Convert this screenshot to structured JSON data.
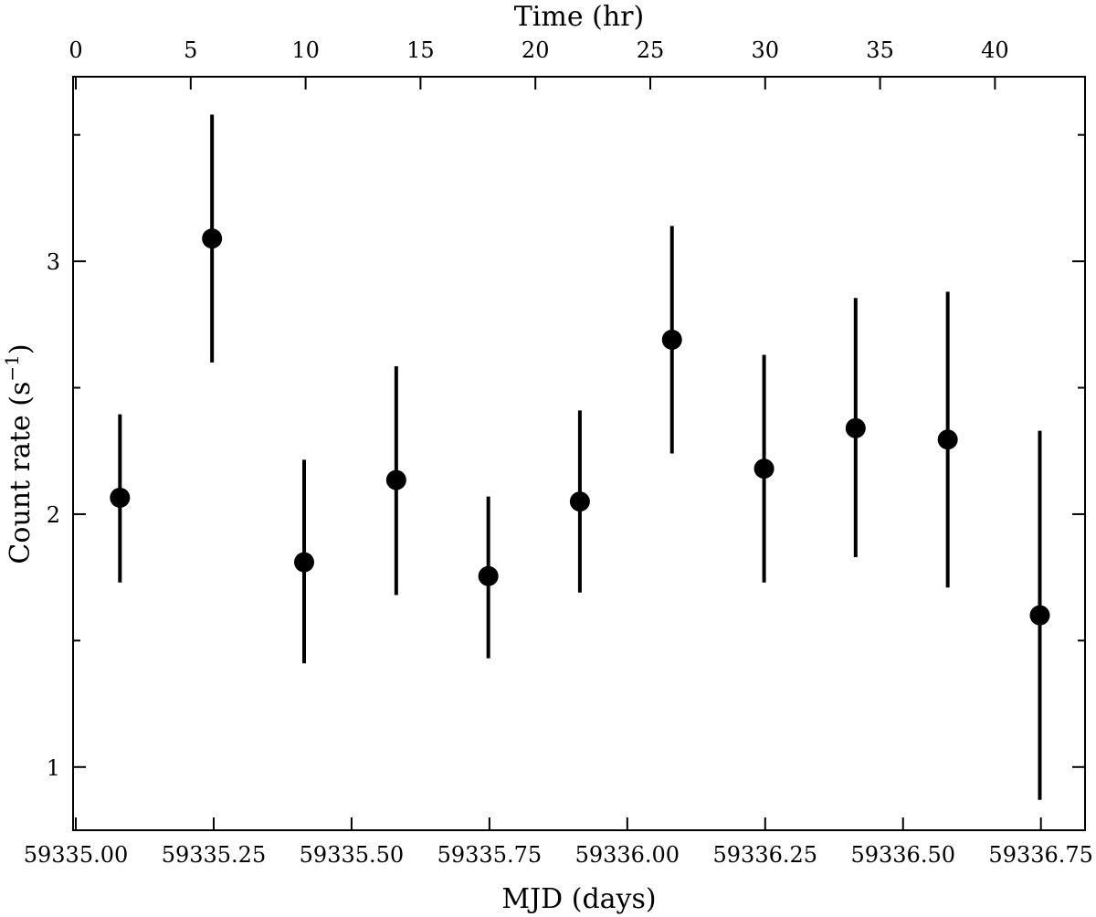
{
  "chart_data": {
    "type": "scatter",
    "title": "",
    "xlabel": "MJD (days)",
    "ylabel": "Count rate (s",
    "ylabel_unit_exponent": "−1",
    "ylabel_suffix": ")",
    "secondary_xlabel": "Time (hr)",
    "xlim": [
      59334.995,
      59336.83
    ],
    "ylim": [
      0.75,
      3.73
    ],
    "secondary_xlim": [
      -0.12,
      43.92
    ],
    "x_ticks": [
      "59335.00",
      "59335.25",
      "59335.50",
      "59335.75",
      "59336.00",
      "59336.25",
      "59336.50",
      "59336.75"
    ],
    "x_tick_values": [
      59335.0,
      59335.25,
      59335.5,
      59335.75,
      59336.0,
      59336.25,
      59336.5,
      59336.75
    ],
    "y_ticks": [
      "1",
      "2",
      "3"
    ],
    "y_tick_values": [
      1,
      2,
      3
    ],
    "y_minor_tick_values": [
      1.5,
      2.5,
      3.5
    ],
    "secondary_x_ticks": [
      "0",
      "5",
      "10",
      "15",
      "20",
      "25",
      "30",
      "35",
      "40"
    ],
    "secondary_x_tick_values": [
      0,
      5,
      10,
      15,
      20,
      25,
      30,
      35,
      40
    ],
    "grid": false,
    "legend": "none",
    "marker_color": "#000000",
    "series": [
      {
        "x": [
          59335.08,
          59335.247,
          59335.414,
          59335.581,
          59335.748,
          59335.914,
          59336.081,
          59336.248,
          59336.414,
          59336.581,
          59336.748
        ],
        "y": [
          2.065,
          3.09,
          1.81,
          2.135,
          1.755,
          2.05,
          2.69,
          2.18,
          2.34,
          2.295,
          1.6
        ],
        "yerr_low": [
          1.73,
          2.6,
          1.41,
          1.68,
          1.43,
          1.69,
          2.24,
          1.73,
          1.83,
          1.71,
          0.87
        ],
        "yerr_high": [
          2.395,
          3.58,
          2.215,
          2.585,
          2.07,
          2.41,
          3.14,
          2.63,
          2.855,
          2.88,
          2.33
        ]
      }
    ]
  }
}
